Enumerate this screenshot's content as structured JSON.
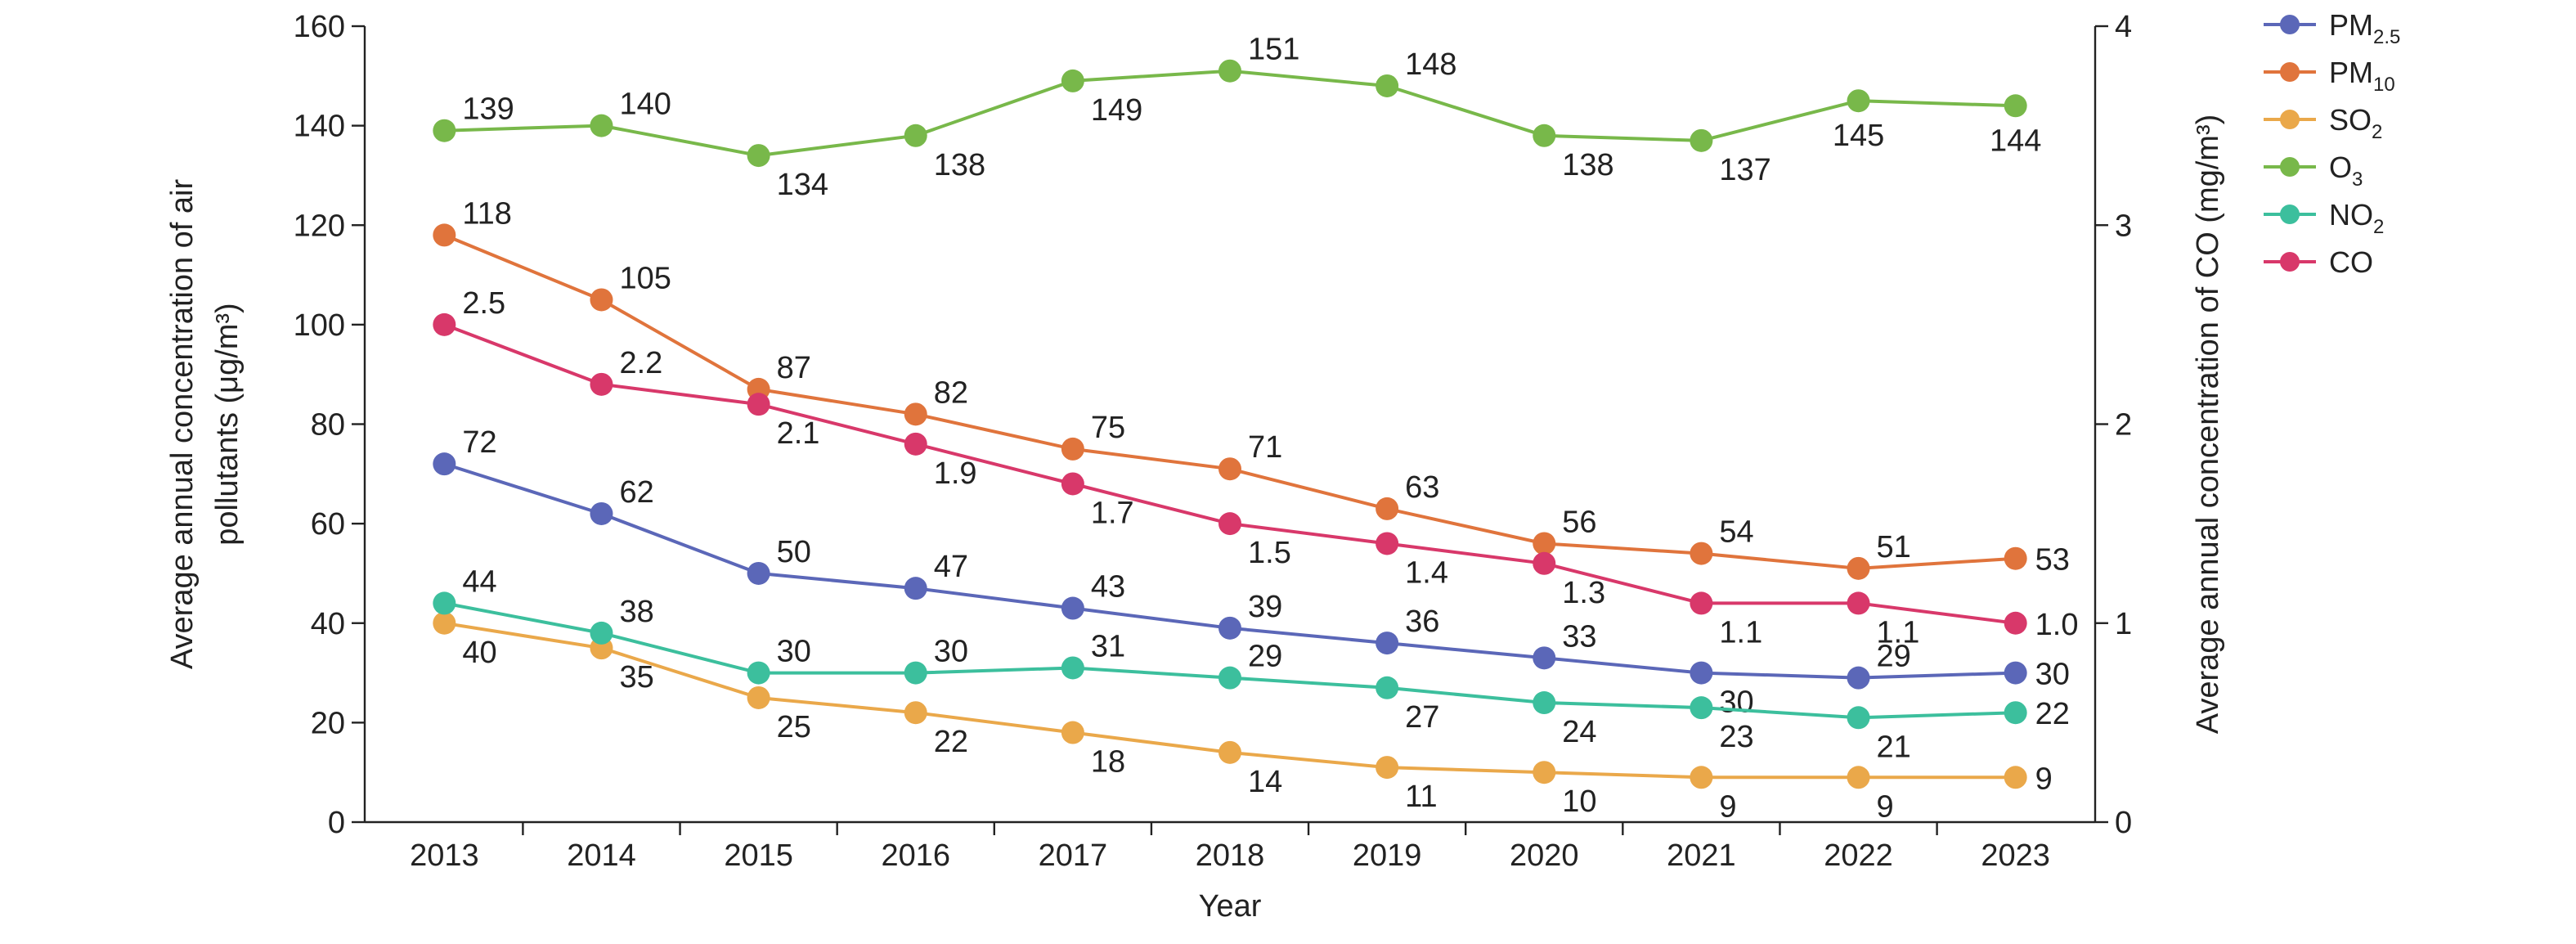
{
  "chart_data": {
    "type": "line",
    "xlabel": "Year",
    "ylabel_left": "Average annual concentration of air pollutants (μg/m³)",
    "ylabel_left_lines": [
      "Average annual concentration of air",
      "pollutants (μg/m³)"
    ],
    "ylabel_right": "Average annual concentration of CO (mg/m³)",
    "x": [
      "2013",
      "2014",
      "2015",
      "2016",
      "2017",
      "2018",
      "2019",
      "2020",
      "2021",
      "2022",
      "2023"
    ],
    "ylim_left": [
      0,
      160
    ],
    "yticks_left": [
      "0",
      "20",
      "40",
      "60",
      "80",
      "100",
      "120",
      "140",
      "160"
    ],
    "ylim_right": [
      0,
      4
    ],
    "yticks_right": [
      "0",
      "1",
      "2",
      "3",
      "4"
    ],
    "grid": false,
    "legend_position": "right",
    "series": [
      {
        "name": "PM",
        "name_sub": "2.5",
        "color": "#5b67b8",
        "axis": "left",
        "values": [
          72,
          62,
          50,
          47,
          43,
          39,
          36,
          33,
          30,
          29,
          30
        ],
        "labels": [
          "72",
          "62",
          "50",
          "47",
          "43",
          "39",
          "36",
          "33",
          "30",
          "29",
          "30"
        ]
      },
      {
        "name": "PM",
        "name_sub": "10",
        "color": "#e0743c",
        "axis": "left",
        "values": [
          118,
          105,
          87,
          82,
          75,
          71,
          63,
          56,
          54,
          51,
          53
        ],
        "labels": [
          "118",
          "105",
          "87",
          "82",
          "75",
          "71",
          "63",
          "56",
          "54",
          "51",
          "53"
        ]
      },
      {
        "name": "SO",
        "name_sub": "2",
        "color": "#eaa84a",
        "axis": "left",
        "values": [
          40,
          35,
          25,
          22,
          18,
          14,
          11,
          10,
          9,
          9,
          9
        ],
        "labels": [
          "40",
          "35",
          "25",
          "22",
          "18",
          "14",
          "11",
          "10",
          "9",
          "9",
          "9"
        ]
      },
      {
        "name": "O",
        "name_sub": "3",
        "color": "#78b84a",
        "axis": "left",
        "values": [
          139,
          140,
          134,
          138,
          149,
          151,
          148,
          138,
          137,
          145,
          144
        ],
        "labels": [
          "139",
          "140",
          "134",
          "138",
          "149",
          "151",
          "148",
          "138",
          "137",
          "145",
          "144"
        ]
      },
      {
        "name": "NO",
        "name_sub": "2",
        "color": "#3cbf9d",
        "axis": "left",
        "values": [
          44,
          38,
          30,
          30,
          31,
          29,
          27,
          24,
          23,
          21,
          22
        ],
        "labels": [
          "44",
          "38",
          "30",
          "30",
          "31",
          "29",
          "27",
          "24",
          "23",
          "21",
          "22"
        ]
      },
      {
        "name": "CO",
        "name_sub": "",
        "color": "#d8386a",
        "axis": "right",
        "values": [
          2.5,
          2.2,
          2.1,
          1.9,
          1.7,
          1.5,
          1.4,
          1.3,
          1.1,
          1.1,
          1.0
        ],
        "labels": [
          "2.5",
          "2.2",
          "2.1",
          "1.9",
          "1.7",
          "1.5",
          "1.4",
          "1.3",
          "1.1",
          "1.1",
          "1.0"
        ]
      }
    ],
    "label_placement": {
      "PM2.5": [
        "ar",
        "ar",
        "ar",
        "ar",
        "ar",
        "ar",
        "ar",
        "ar",
        "br",
        "ar",
        "r"
      ],
      "PM10": [
        "ar",
        "ar",
        "ar",
        "ar",
        "ar",
        "ar",
        "ar",
        "ar",
        "ar",
        "ar",
        "r"
      ],
      "SO2": [
        "br",
        "br",
        "br",
        "br",
        "br",
        "br",
        "br",
        "br",
        "br",
        "br",
        "r"
      ],
      "O3": [
        "ar",
        "ar",
        "br",
        "br",
        "br",
        "ar",
        "ar",
        "br",
        "br",
        "b",
        "b"
      ],
      "NO2": [
        "ar",
        "ar",
        "ar",
        "ar",
        "ar",
        "ar",
        "br",
        "br",
        "br",
        "br",
        "r"
      ],
      "CO": [
        "ar",
        "ar",
        "br",
        "br",
        "br",
        "br",
        "br",
        "br",
        "br",
        "br",
        "r"
      ]
    }
  }
}
